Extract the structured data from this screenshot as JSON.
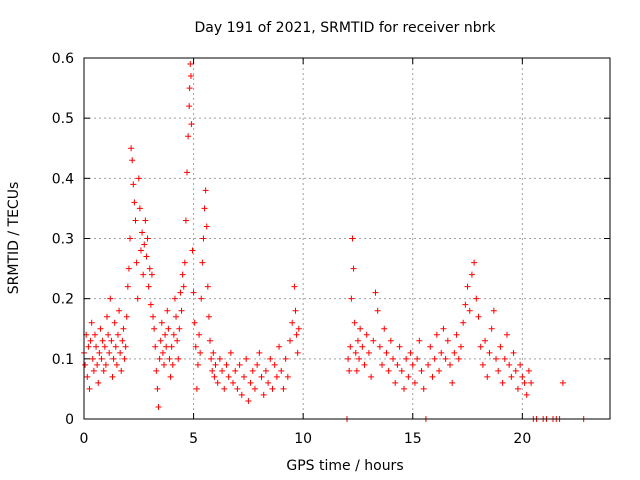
{
  "chart_data": {
    "type": "scatter",
    "title": "Day 191 of 2021, SRMTID for receiver nbrk",
    "xlabel": "GPS time / hours",
    "ylabel": "SRMTID / TECUs",
    "xlim": [
      0,
      24
    ],
    "ylim": [
      0,
      0.6
    ],
    "x_ticks": [
      0,
      5,
      10,
      15,
      20
    ],
    "x_tick_labels": [
      "0",
      "5",
      "10",
      "15",
      "20"
    ],
    "y_ticks": [
      0,
      0.1,
      0.2,
      0.3,
      0.4,
      0.5,
      0.6
    ],
    "y_tick_labels": [
      "0",
      "0.1",
      "0.2",
      "0.3",
      "0.4",
      "0.5",
      "0.6"
    ],
    "grid": true,
    "marker": "+",
    "marker_color": "#ff0000",
    "series": [
      {
        "name": "SRMTID",
        "points": [
          [
            0.0,
            0.11
          ],
          [
            0.05,
            0.09
          ],
          [
            0.1,
            0.14
          ],
          [
            0.15,
            0.07
          ],
          [
            0.2,
            0.12
          ],
          [
            0.25,
            0.05
          ],
          [
            0.3,
            0.13
          ],
          [
            0.35,
            0.16
          ],
          [
            0.4,
            0.1
          ],
          [
            0.45,
            0.08
          ],
          [
            0.5,
            0.14
          ],
          [
            0.55,
            0.12
          ],
          [
            0.6,
            0.09
          ],
          [
            0.65,
            0.06
          ],
          [
            0.7,
            0.11
          ],
          [
            0.75,
            0.15
          ],
          [
            0.8,
            0.1
          ],
          [
            0.85,
            0.13
          ],
          [
            0.9,
            0.08
          ],
          [
            0.95,
            0.12
          ],
          [
            1.0,
            0.09
          ],
          [
            1.05,
            0.17
          ],
          [
            1.1,
            0.14
          ],
          [
            1.15,
            0.11
          ],
          [
            1.2,
            0.2
          ],
          [
            1.25,
            0.13
          ],
          [
            1.3,
            0.07
          ],
          [
            1.35,
            0.1
          ],
          [
            1.4,
            0.16
          ],
          [
            1.45,
            0.12
          ],
          [
            1.5,
            0.09
          ],
          [
            1.55,
            0.14
          ],
          [
            1.6,
            0.18
          ],
          [
            1.65,
            0.11
          ],
          [
            1.7,
            0.08
          ],
          [
            1.75,
            0.13
          ],
          [
            1.8,
            0.15
          ],
          [
            1.85,
            0.1
          ],
          [
            1.9,
            0.12
          ],
          [
            1.95,
            0.17
          ],
          [
            2.0,
            0.22
          ],
          [
            2.05,
            0.25
          ],
          [
            2.1,
            0.3
          ],
          [
            2.15,
            0.45
          ],
          [
            2.2,
            0.43
          ],
          [
            2.25,
            0.39
          ],
          [
            2.3,
            0.36
          ],
          [
            2.35,
            0.33
          ],
          [
            2.4,
            0.26
          ],
          [
            2.45,
            0.2
          ],
          [
            2.5,
            0.4
          ],
          [
            2.55,
            0.35
          ],
          [
            2.6,
            0.28
          ],
          [
            2.65,
            0.31
          ],
          [
            2.7,
            0.24
          ],
          [
            2.75,
            0.29
          ],
          [
            2.8,
            0.33
          ],
          [
            2.85,
            0.27
          ],
          [
            2.9,
            0.3
          ],
          [
            2.95,
            0.22
          ],
          [
            3.0,
            0.25
          ],
          [
            3.05,
            0.19
          ],
          [
            3.1,
            0.24
          ],
          [
            3.15,
            0.17
          ],
          [
            3.2,
            0.15
          ],
          [
            3.25,
            0.12
          ],
          [
            3.3,
            0.08
          ],
          [
            3.35,
            0.05
          ],
          [
            3.4,
            0.02
          ],
          [
            3.45,
            0.1
          ],
          [
            3.5,
            0.13
          ],
          [
            3.55,
            0.16
          ],
          [
            3.6,
            0.11
          ],
          [
            3.65,
            0.09
          ],
          [
            3.7,
            0.14
          ],
          [
            3.75,
            0.12
          ],
          [
            3.8,
            0.18
          ],
          [
            3.85,
            0.15
          ],
          [
            3.9,
            0.1
          ],
          [
            3.95,
            0.07
          ],
          [
            4.0,
            0.12
          ],
          [
            4.05,
            0.09
          ],
          [
            4.1,
            0.14
          ],
          [
            4.15,
            0.2
          ],
          [
            4.2,
            0.17
          ],
          [
            4.25,
            0.13
          ],
          [
            4.3,
            0.1
          ],
          [
            4.35,
            0.15
          ],
          [
            4.4,
            0.21
          ],
          [
            4.45,
            0.18
          ],
          [
            4.5,
            0.24
          ],
          [
            4.55,
            0.22
          ],
          [
            4.6,
            0.26
          ],
          [
            4.65,
            0.33
          ],
          [
            4.7,
            0.41
          ],
          [
            4.75,
            0.47
          ],
          [
            4.8,
            0.52
          ],
          [
            4.82,
            0.55
          ],
          [
            4.85,
            0.59
          ],
          [
            4.88,
            0.57
          ],
          [
            4.9,
            0.49
          ],
          [
            4.95,
            0.28
          ],
          [
            5.0,
            0.21
          ],
          [
            5.05,
            0.16
          ],
          [
            5.1,
            0.12
          ],
          [
            5.15,
            0.05
          ],
          [
            5.2,
            0.09
          ],
          [
            5.25,
            0.14
          ],
          [
            5.3,
            0.11
          ],
          [
            5.35,
            0.2
          ],
          [
            5.4,
            0.26
          ],
          [
            5.45,
            0.3
          ],
          [
            5.5,
            0.35
          ],
          [
            5.55,
            0.38
          ],
          [
            5.6,
            0.32
          ],
          [
            5.65,
            0.22
          ],
          [
            5.7,
            0.17
          ],
          [
            5.75,
            0.13
          ],
          [
            5.8,
            0.1
          ],
          [
            5.85,
            0.08
          ],
          [
            5.9,
            0.11
          ],
          [
            5.95,
            0.07
          ],
          [
            6.0,
            0.09
          ],
          [
            6.1,
            0.06
          ],
          [
            6.2,
            0.1
          ],
          [
            6.3,
            0.08
          ],
          [
            6.4,
            0.05
          ],
          [
            6.5,
            0.09
          ],
          [
            6.6,
            0.07
          ],
          [
            6.7,
            0.11
          ],
          [
            6.8,
            0.06
          ],
          [
            6.9,
            0.08
          ],
          [
            7.0,
            0.05
          ],
          [
            7.1,
            0.09
          ],
          [
            7.2,
            0.04
          ],
          [
            7.3,
            0.07
          ],
          [
            7.4,
            0.1
          ],
          [
            7.5,
            0.03
          ],
          [
            7.6,
            0.06
          ],
          [
            7.7,
            0.08
          ],
          [
            7.8,
            0.05
          ],
          [
            7.9,
            0.09
          ],
          [
            8.0,
            0.11
          ],
          [
            8.1,
            0.07
          ],
          [
            8.2,
            0.04
          ],
          [
            8.3,
            0.08
          ],
          [
            8.4,
            0.06
          ],
          [
            8.5,
            0.1
          ],
          [
            8.6,
            0.05
          ],
          [
            8.7,
            0.09
          ],
          [
            8.8,
            0.07
          ],
          [
            8.9,
            0.12
          ],
          [
            9.0,
            0.08
          ],
          [
            9.1,
            0.05
          ],
          [
            9.2,
            0.1
          ],
          [
            9.3,
            0.07
          ],
          [
            9.4,
            0.13
          ],
          [
            9.5,
            0.16
          ],
          [
            9.6,
            0.22
          ],
          [
            9.65,
            0.18
          ],
          [
            9.7,
            0.14
          ],
          [
            9.75,
            0.11
          ],
          [
            9.8,
            0.15
          ],
          [
            12.0,
            0.0
          ],
          [
            12.05,
            0.1
          ],
          [
            12.1,
            0.08
          ],
          [
            12.15,
            0.12
          ],
          [
            12.2,
            0.2
          ],
          [
            12.25,
            0.3
          ],
          [
            12.3,
            0.25
          ],
          [
            12.35,
            0.16
          ],
          [
            12.4,
            0.11
          ],
          [
            12.45,
            0.08
          ],
          [
            12.5,
            0.13
          ],
          [
            12.55,
            0.1
          ],
          [
            12.6,
            0.15
          ],
          [
            12.7,
            0.12
          ],
          [
            12.8,
            0.09
          ],
          [
            12.9,
            0.14
          ],
          [
            13.0,
            0.11
          ],
          [
            13.1,
            0.07
          ],
          [
            13.2,
            0.13
          ],
          [
            13.3,
            0.21
          ],
          [
            13.4,
            0.18
          ],
          [
            13.5,
            0.12
          ],
          [
            13.6,
            0.09
          ],
          [
            13.7,
            0.15
          ],
          [
            13.8,
            0.11
          ],
          [
            13.9,
            0.08
          ],
          [
            14.0,
            0.13
          ],
          [
            14.1,
            0.1
          ],
          [
            14.2,
            0.06
          ],
          [
            14.3,
            0.09
          ],
          [
            14.4,
            0.12
          ],
          [
            14.5,
            0.08
          ],
          [
            14.6,
            0.05
          ],
          [
            14.7,
            0.1
          ],
          [
            14.8,
            0.07
          ],
          [
            14.9,
            0.11
          ],
          [
            15.0,
            0.09
          ],
          [
            15.1,
            0.06
          ],
          [
            15.2,
            0.1
          ],
          [
            15.3,
            0.13
          ],
          [
            15.4,
            0.08
          ],
          [
            15.5,
            0.05
          ],
          [
            15.6,
            0.0
          ],
          [
            15.7,
            0.09
          ],
          [
            15.8,
            0.12
          ],
          [
            15.9,
            0.07
          ],
          [
            16.0,
            0.1
          ],
          [
            16.1,
            0.14
          ],
          [
            16.2,
            0.08
          ],
          [
            16.3,
            0.11
          ],
          [
            16.4,
            0.15
          ],
          [
            16.5,
            0.1
          ],
          [
            16.6,
            0.13
          ],
          [
            16.7,
            0.09
          ],
          [
            16.8,
            0.06
          ],
          [
            16.9,
            0.11
          ],
          [
            17.0,
            0.14
          ],
          [
            17.1,
            0.1
          ],
          [
            17.2,
            0.12
          ],
          [
            17.3,
            0.16
          ],
          [
            17.4,
            0.19
          ],
          [
            17.5,
            0.22
          ],
          [
            17.6,
            0.18
          ],
          [
            17.7,
            0.24
          ],
          [
            17.8,
            0.26
          ],
          [
            17.9,
            0.2
          ],
          [
            18.0,
            0.17
          ],
          [
            18.1,
            0.12
          ],
          [
            18.2,
            0.09
          ],
          [
            18.3,
            0.13
          ],
          [
            18.4,
            0.07
          ],
          [
            18.5,
            0.11
          ],
          [
            18.6,
            0.15
          ],
          [
            18.7,
            0.18
          ],
          [
            18.8,
            0.1
          ],
          [
            18.9,
            0.08
          ],
          [
            19.0,
            0.12
          ],
          [
            19.1,
            0.06
          ],
          [
            19.2,
            0.1
          ],
          [
            19.3,
            0.14
          ],
          [
            19.4,
            0.09
          ],
          [
            19.5,
            0.07
          ],
          [
            19.6,
            0.11
          ],
          [
            19.7,
            0.08
          ],
          [
            19.8,
            0.05
          ],
          [
            19.9,
            0.09
          ],
          [
            20.0,
            0.07
          ],
          [
            20.1,
            0.06
          ],
          [
            20.2,
            0.04
          ],
          [
            20.3,
            0.08
          ],
          [
            20.4,
            0.06
          ],
          [
            20.5,
            0.0
          ],
          [
            20.65,
            0.0
          ],
          [
            20.95,
            0.0
          ],
          [
            21.1,
            0.0
          ],
          [
            21.4,
            0.0
          ],
          [
            21.55,
            0.0
          ],
          [
            21.7,
            0.0
          ],
          [
            21.85,
            0.06
          ],
          [
            22.8,
            0.0
          ]
        ]
      }
    ]
  }
}
